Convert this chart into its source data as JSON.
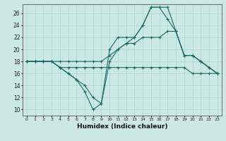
{
  "xlabel": "Humidex (Indice chaleur)",
  "background_color": "#cce8e4",
  "grid_color": "#aad4d0",
  "line_color": "#1a6b64",
  "x_ticks": [
    0,
    1,
    2,
    3,
    4,
    5,
    6,
    7,
    8,
    9,
    10,
    11,
    12,
    13,
    14,
    15,
    16,
    17,
    18,
    19,
    20,
    21,
    22,
    23
  ],
  "ylim": [
    9,
    27.5
  ],
  "xlim": [
    -0.5,
    23.5
  ],
  "yticks": [
    10,
    12,
    14,
    16,
    18,
    20,
    22,
    24,
    26
  ],
  "line_flat": [
    18,
    18,
    18,
    18,
    17,
    17,
    17,
    17,
    17,
    17,
    17,
    17,
    17,
    17,
    17,
    17,
    17,
    17,
    17,
    17,
    16,
    16,
    16,
    16
  ],
  "line_gradual": [
    18,
    18,
    18,
    18,
    18,
    18,
    18,
    18,
    18,
    18,
    19,
    20,
    21,
    21,
    22,
    22,
    22,
    23,
    23,
    19,
    19,
    18,
    17,
    16
  ],
  "line_jagged1": [
    18,
    18,
    18,
    18,
    17,
    16,
    15,
    14,
    12,
    11,
    18,
    20,
    21,
    22,
    24,
    27,
    27,
    25,
    23,
    19,
    19,
    18,
    17,
    16
  ],
  "line_jagged2": [
    18,
    18,
    18,
    18,
    17,
    16,
    15,
    13,
    10,
    11,
    20,
    22,
    22,
    22,
    24,
    27,
    27,
    27,
    23,
    19,
    19,
    18,
    17,
    16
  ]
}
